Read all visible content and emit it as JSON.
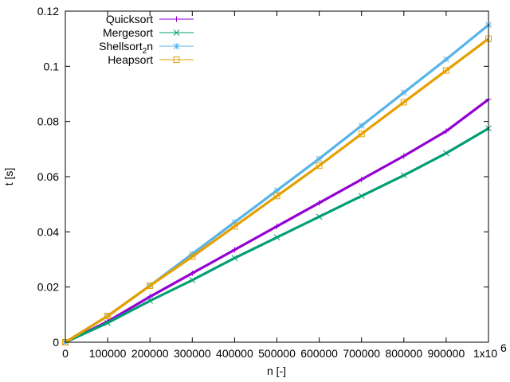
{
  "chart_data": {
    "type": "scatter",
    "title": "",
    "xlabel": "n [-]",
    "ylabel": "t [s]",
    "xlim": [
      0,
      1000000
    ],
    "ylim": [
      0,
      0.12
    ],
    "x_ticks": [
      0,
      100000,
      200000,
      300000,
      400000,
      500000,
      600000,
      700000,
      800000,
      900000,
      1000000
    ],
    "x_tick_labels": [
      "0",
      "100000",
      "200000",
      "300000",
      "400000",
      "500000",
      "600000",
      "700000",
      "800000",
      "900000",
      "1x10"
    ],
    "x_last_tick_exponent": "6",
    "y_ticks": [
      0,
      0.02,
      0.04,
      0.06,
      0.08,
      0.1,
      0.12
    ],
    "y_tick_labels": [
      "0",
      "0.02",
      "0.04",
      "0.06",
      "0.08",
      "0.1",
      "0.12"
    ],
    "grid": false,
    "legend_position": "top-left",
    "x": [
      0,
      100000,
      200000,
      300000,
      400000,
      500000,
      600000,
      700000,
      800000,
      900000,
      1000000
    ],
    "series": [
      {
        "name": "Quicksort",
        "color": "#9400d3",
        "marker": "plus",
        "values": [
          0,
          0.0075,
          0.0165,
          0.025,
          0.0335,
          0.042,
          0.0505,
          0.059,
          0.0675,
          0.0765,
          0.088
        ]
      },
      {
        "name": "Mergesort",
        "color": "#009e73",
        "marker": "cross",
        "values": [
          0,
          0.007,
          0.015,
          0.0225,
          0.0305,
          0.038,
          0.0455,
          0.053,
          0.0605,
          0.0685,
          0.0775
        ]
      },
      {
        "name": "Shellsort",
        "name_subscript": "2",
        "name_suffix": "n",
        "color": "#56b4e9",
        "marker": "star",
        "values": [
          0,
          0.0095,
          0.0205,
          0.032,
          0.0435,
          0.055,
          0.0665,
          0.0785,
          0.0905,
          0.1025,
          0.115
        ]
      },
      {
        "name": "Heapsort",
        "color": "#e69f00",
        "marker": "box",
        "values": [
          0,
          0.0095,
          0.0205,
          0.031,
          0.042,
          0.053,
          0.064,
          0.0755,
          0.087,
          0.0985,
          0.11
        ]
      }
    ]
  }
}
